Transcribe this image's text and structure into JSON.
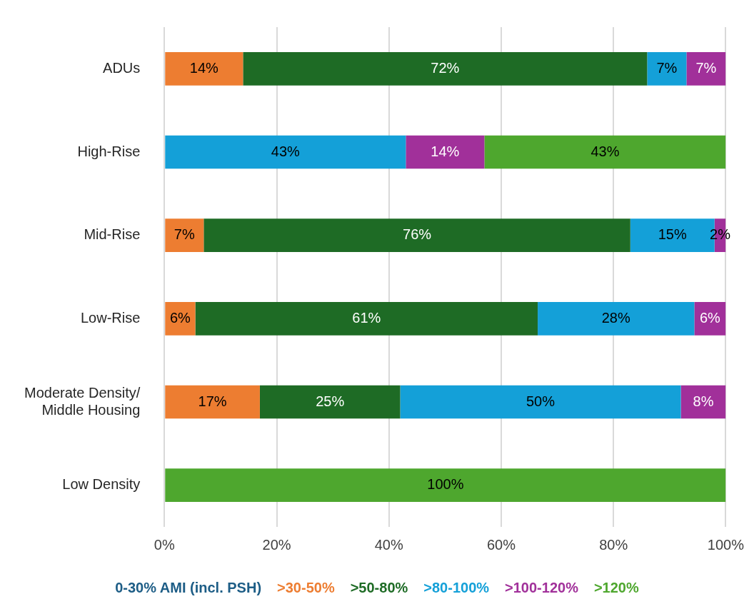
{
  "chart_data": {
    "type": "bar",
    "orientation": "horizontal",
    "stacked": true,
    "categories": [
      "ADUs",
      "High-Rise",
      "Mid-Rise",
      "Low-Rise",
      "Moderate Density/\nMiddle Housing",
      "Low Density"
    ],
    "series": [
      {
        "name": "0-30% AMI (incl. PSH)",
        "color": "#1d5d86",
        "values": [
          null,
          null,
          null,
          null,
          null,
          null
        ],
        "value_labels": [
          null,
          null,
          null,
          null,
          null,
          null
        ]
      },
      {
        "name": ">30-50%",
        "color": "#ed7d31",
        "values": [
          14,
          null,
          7,
          5.5,
          17,
          null
        ],
        "value_labels": [
          "14%",
          null,
          "7%",
          "6%",
          "17%",
          null
        ]
      },
      {
        "name": ">50-80%",
        "color": "#1e6b25",
        "values": [
          72,
          null,
          76,
          61,
          25,
          null
        ],
        "value_labels": [
          "72%",
          null,
          "76%",
          "61%",
          "25%",
          null
        ]
      },
      {
        "name": ">80-100%",
        "color": "#14a0d8",
        "values": [
          7,
          43,
          15,
          27.9,
          50,
          null
        ],
        "value_labels": [
          "7%",
          "43%",
          "15%",
          "28%",
          "50%",
          null
        ]
      },
      {
        "name": ">100-120%",
        "color": "#a1309a",
        "values": [
          7,
          14,
          2,
          5.6,
          8,
          null
        ],
        "value_labels": [
          "7%",
          "14%",
          "2%",
          "6%",
          "8%",
          null
        ]
      },
      {
        "name": ">120%",
        "color": "#4ea72e",
        "values": [
          null,
          43,
          null,
          null,
          null,
          100
        ],
        "value_labels": [
          null,
          "43%",
          null,
          null,
          null,
          "100%"
        ]
      }
    ],
    "xlim": [
      0,
      100
    ],
    "xticks": [
      {
        "value": 0,
        "label": "0%"
      },
      {
        "value": 20,
        "label": "20%"
      },
      {
        "value": 40,
        "label": "40%"
      },
      {
        "value": 60,
        "label": "60%"
      },
      {
        "value": 80,
        "label": "80%"
      },
      {
        "value": 100,
        "label": "100%"
      }
    ],
    "grid": "x",
    "legend": "bottom"
  }
}
